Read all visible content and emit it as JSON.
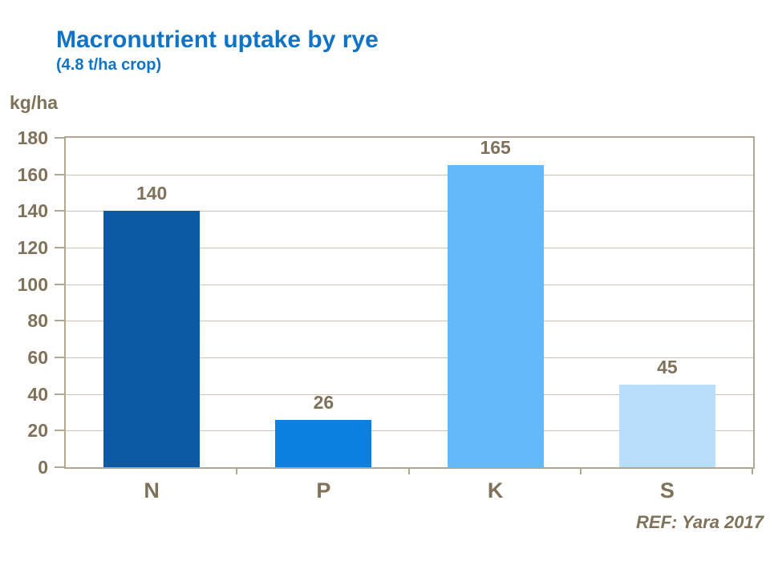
{
  "page": {
    "title": "Macronutrient uptake by rye",
    "subtitle": "(4.8 t/ha crop)",
    "reference": "REF: Yara 2017"
  },
  "chart_data": {
    "type": "bar",
    "title": "Macronutrient uptake by rye",
    "subtitle": "(4.8 t/ha crop)",
    "xlabel": "",
    "ylabel": "kg/ha",
    "categories": [
      "N",
      "P",
      "K",
      "S"
    ],
    "values": [
      140,
      26,
      165,
      45
    ],
    "data_labels": [
      "140",
      "26",
      "165",
      "45"
    ],
    "bar_colors": [
      "#0B5AA3",
      "#0C80E1",
      "#64B9FB",
      "#B9DEFB"
    ],
    "ylim": [
      0,
      180
    ],
    "yticks": [
      0,
      20,
      40,
      60,
      80,
      100,
      120,
      140,
      160,
      180
    ],
    "grid": true,
    "legend_position": "none",
    "reference": "REF: Yara 2017",
    "colors": {
      "title": "#1173C5",
      "axis_text": "#80715A",
      "axis_border": "#B1A793",
      "gridline": "#CBC3B4"
    }
  }
}
